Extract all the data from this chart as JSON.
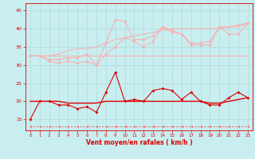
{
  "x": [
    0,
    1,
    2,
    3,
    4,
    5,
    6,
    7,
    8,
    9,
    10,
    11,
    12,
    13,
    14,
    15,
    16,
    17,
    18,
    19,
    20,
    21,
    22,
    23
  ],
  "line_flat": [
    32.5,
    32.5,
    32.5,
    32.5,
    32.5,
    32.5,
    32.5,
    32.5,
    32.5,
    32.5,
    32.5,
    32.5,
    32.5,
    32.5,
    32.5,
    32.5,
    32.5,
    32.5,
    32.5,
    32.5,
    32.5,
    32.5,
    32.5,
    32.5
  ],
  "line_trend": [
    32.5,
    32.5,
    32.5,
    33.0,
    34.0,
    34.5,
    34.5,
    35.0,
    36.0,
    37.0,
    37.5,
    38.0,
    38.5,
    39.0,
    39.5,
    40.0,
    40.0,
    40.0,
    40.0,
    40.0,
    40.0,
    40.5,
    40.5,
    41.5
  ],
  "line_jagged1": [
    32.5,
    32.5,
    31.0,
    30.5,
    31.0,
    30.5,
    31.0,
    30.0,
    33.0,
    35.0,
    37.5,
    36.5,
    35.0,
    36.5,
    40.5,
    39.0,
    38.5,
    35.5,
    35.5,
    35.5,
    40.5,
    38.5,
    38.5,
    41.5
  ],
  "line_jagged2": [
    32.5,
    32.5,
    31.5,
    31.5,
    32.0,
    32.0,
    33.0,
    30.0,
    36.0,
    42.5,
    42.0,
    37.0,
    37.0,
    38.0,
    40.5,
    39.5,
    38.5,
    36.0,
    36.0,
    36.5,
    40.5,
    40.5,
    41.0,
    41.5
  ],
  "line_wind": [
    15.0,
    20.0,
    20.0,
    19.0,
    19.0,
    18.0,
    18.5,
    17.0,
    22.5,
    28.0,
    20.0,
    20.5,
    20.0,
    23.0,
    23.5,
    23.0,
    20.5,
    22.5,
    20.0,
    19.0,
    19.0,
    21.0,
    22.5,
    21.0
  ],
  "line_mean": [
    20.0,
    20.0,
    20.0,
    20.0,
    19.5,
    19.5,
    19.5,
    19.5,
    20.0,
    20.0,
    20.0,
    20.0,
    20.0,
    20.0,
    20.0,
    20.0,
    20.0,
    20.0,
    20.0,
    19.5,
    19.5,
    20.0,
    20.5,
    21.0
  ],
  "line_dashed": [
    13.0,
    13.0,
    13.0,
    13.0,
    13.0,
    13.0,
    13.0,
    13.0,
    13.0,
    13.0,
    13.0,
    13.0,
    13.0,
    13.0,
    13.0,
    13.0,
    13.0,
    13.0,
    13.0,
    13.0,
    13.0,
    13.0,
    13.0,
    13.0
  ],
  "bg_color": "#c8eef0",
  "grid_color": "#b0d8da",
  "color_light": "#ffaaaa",
  "color_dark": "#dd0000",
  "color_dashed": "#ff5555",
  "xlabel": "Vent moyen/en rafales ( km/h )",
  "ylim": [
    12,
    47
  ],
  "xlim": [
    -0.5,
    23.5
  ],
  "yticks": [
    15,
    20,
    25,
    30,
    35,
    40,
    45
  ],
  "xticks": [
    0,
    1,
    2,
    3,
    4,
    5,
    6,
    7,
    8,
    9,
    10,
    11,
    12,
    13,
    14,
    15,
    16,
    17,
    18,
    19,
    20,
    21,
    22,
    23
  ]
}
